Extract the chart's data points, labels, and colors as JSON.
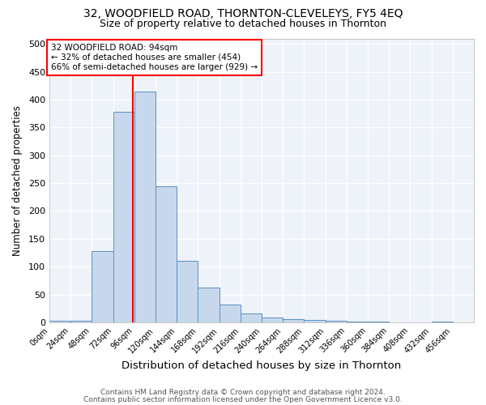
{
  "title_line1": "32, WOODFIELD ROAD, THORNTON-CLEVELEYS, FY5 4EQ",
  "title_line2": "Size of property relative to detached houses in Thornton",
  "xlabel": "Distribution of detached houses by size in Thornton",
  "ylabel": "Number of detached properties",
  "footnote1": "Contains HM Land Registry data © Crown copyright and database right 2024.",
  "footnote2": "Contains public sector information licensed under the Open Government Licence v3.0.",
  "bin_width": 24,
  "bins_start": 0,
  "bar_values": [
    3,
    3,
    128,
    378,
    415,
    245,
    110,
    63,
    32,
    16,
    8,
    5,
    4,
    2,
    1,
    1,
    0,
    0,
    1
  ],
  "bar_color": "#c8d8ec",
  "bar_edge_color": "#5a8fc3",
  "property_size": 94,
  "annotation_text_line1": "32 WOODFIELD ROAD: 94sqm",
  "annotation_text_line2": "← 32% of detached houses are smaller (454)",
  "annotation_text_line3": "66% of semi-detached houses are larger (929) →",
  "annotation_box_color": "white",
  "annotation_box_edge_color": "red",
  "vline_color": "red",
  "vline_x": 94,
  "ylim": [
    0,
    510
  ],
  "xlim": [
    0,
    480
  ],
  "yticks": [
    0,
    50,
    100,
    150,
    200,
    250,
    300,
    350,
    400,
    450,
    500
  ],
  "background_color": "#eef2f9",
  "grid_color": "white",
  "title1_fontsize": 10,
  "title2_fontsize": 9,
  "xlabel_fontsize": 9.5,
  "ylabel_fontsize": 8.5,
  "footnote_fontsize": 6.5
}
